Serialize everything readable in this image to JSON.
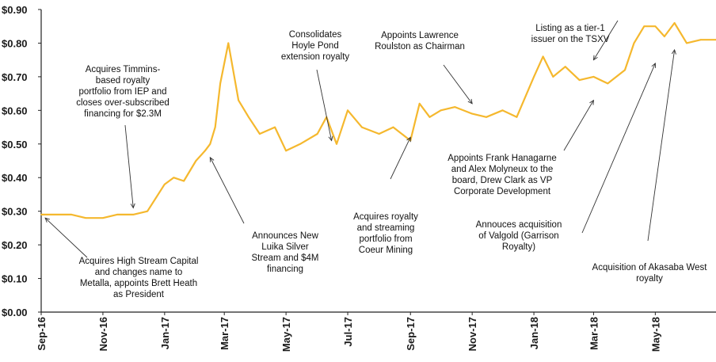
{
  "chart_data": {
    "type": "line",
    "title": "",
    "xlabel": "",
    "ylabel": "",
    "ylim": [
      0,
      0.9
    ],
    "y_ticks": [
      "$0.00",
      "$0.10",
      "$0.20",
      "$0.30",
      "$0.40",
      "$0.50",
      "$0.60",
      "$0.70",
      "$0.80",
      "$0.90"
    ],
    "x_ticks": [
      "Sep-16",
      "Nov-16",
      "Jan-17",
      "Mar-17",
      "May-17",
      "Jul-17",
      "Sep-17",
      "Nov-17",
      "Jan-18",
      "Mar-18",
      "May-18"
    ],
    "grid": false,
    "line_color": "#F5B82E",
    "series": [
      {
        "x": [
          "2016-09-01",
          "2016-09-15",
          "2016-10-01",
          "2016-10-15",
          "2016-11-01",
          "2016-11-15",
          "2016-12-01",
          "2016-12-15",
          "2017-01-01",
          "2017-01-10",
          "2017-01-20",
          "2017-02-01",
          "2017-02-10",
          "2017-02-15",
          "2017-02-20",
          "2017-02-25",
          "2017-03-05",
          "2017-03-15",
          "2017-03-25",
          "2017-04-05",
          "2017-04-20",
          "2017-05-01",
          "2017-05-15",
          "2017-06-01",
          "2017-06-10",
          "2017-06-20",
          "2017-07-01",
          "2017-07-15",
          "2017-08-01",
          "2017-08-15",
          "2017-09-01",
          "2017-09-10",
          "2017-09-20",
          "2017-10-01",
          "2017-10-15",
          "2017-11-01",
          "2017-11-15",
          "2017-12-01",
          "2017-12-15",
          "2018-01-01",
          "2018-01-10",
          "2018-01-20",
          "2018-02-01",
          "2018-02-15",
          "2018-03-01",
          "2018-03-15",
          "2018-04-01",
          "2018-04-10",
          "2018-04-20",
          "2018-05-01",
          "2018-05-10",
          "2018-05-20",
          "2018-06-01",
          "2018-06-15",
          "2018-06-30"
        ],
        "values": [
          0.29,
          0.29,
          0.29,
          0.28,
          0.28,
          0.29,
          0.29,
          0.3,
          0.38,
          0.4,
          0.39,
          0.45,
          0.48,
          0.5,
          0.55,
          0.68,
          0.8,
          0.63,
          0.58,
          0.53,
          0.55,
          0.48,
          0.5,
          0.53,
          0.58,
          0.5,
          0.6,
          0.55,
          0.53,
          0.55,
          0.51,
          0.62,
          0.58,
          0.6,
          0.61,
          0.59,
          0.58,
          0.6,
          0.58,
          0.7,
          0.76,
          0.7,
          0.73,
          0.69,
          0.7,
          0.68,
          0.72,
          0.8,
          0.85,
          0.85,
          0.82,
          0.86,
          0.8,
          0.81,
          0.81
        ]
      }
    ],
    "annotations": [
      {
        "lines": [
          "Acquires High Stream Capital",
          "and changes name to",
          "Metalla, appoints Brett Heath",
          "as President"
        ],
        "point": [
          "2016-09-05",
          0.28
        ]
      },
      {
        "lines": [
          "Acquires Timmins-",
          "based royalty",
          "portfolio from IEP and",
          "closes over-subscribed",
          "financing for $2.3M"
        ],
        "point": [
          "2016-12-01",
          0.31
        ]
      },
      {
        "lines": [
          "Announces New",
          "Luika Silver",
          "Stream and $4M",
          "financing"
        ],
        "point": [
          "2017-02-15",
          0.46
        ]
      },
      {
        "lines": [
          "Consolidates",
          "Hoyle Pond",
          "extension royalty"
        ],
        "point": [
          "2017-06-15",
          0.51
        ]
      },
      {
        "lines": [
          "Acquires royalty",
          "and streaming",
          "portfolio from",
          "Coeur Mining"
        ],
        "point": [
          "2017-09-01",
          0.52
        ]
      },
      {
        "lines": [
          "Appoints Lawrence",
          "Roulston as Chairman"
        ],
        "point": [
          "2017-11-01",
          0.62
        ]
      },
      {
        "lines": [
          "Listing as a tier-1",
          "issuer on the TSXV"
        ],
        "point": [
          "2018-03-01",
          0.75
        ]
      },
      {
        "lines": [
          "Appoints Frank Hanagarne",
          "and Alex Molyneux to the",
          "board, Drew Clark as VP",
          "Corporate Development"
        ],
        "point": [
          "2018-03-01",
          0.63
        ]
      },
      {
        "lines": [
          "Annouces acquisition",
          "of Valgold  (Garrison",
          "Royalty)"
        ],
        "point": [
          "2018-05-01",
          0.74
        ]
      },
      {
        "lines": [
          "Acquisition of Akasaba West",
          "royalty"
        ],
        "point": [
          "2018-05-20",
          0.78
        ]
      }
    ]
  }
}
